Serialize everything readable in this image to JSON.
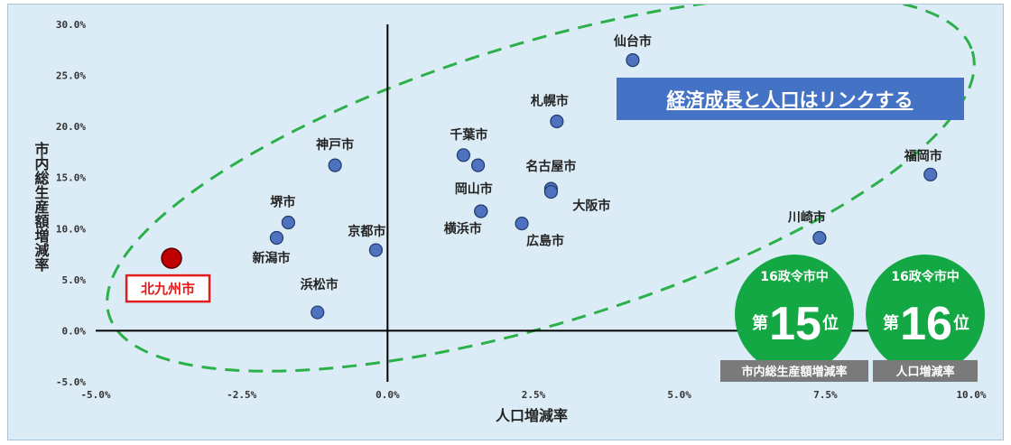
{
  "chart_data": {
    "type": "scatter",
    "xlabel": "人口増減率",
    "ylabel": "市内総生産額増減率",
    "xlim": [
      -5.0,
      10.0
    ],
    "ylim": [
      -5.0,
      30.0
    ],
    "x_ticks": [
      "-5.0%",
      "-2.5%",
      "0.0%",
      "2.5%",
      "5.0%",
      "7.5%",
      "10.0%"
    ],
    "y_ticks": [
      "-5.0%",
      "0.0%",
      "5.0%",
      "10.0%",
      "15.0%",
      "20.0%",
      "25.0%",
      "30.0%"
    ],
    "x_tick_values": [
      -5.0,
      -2.5,
      0.0,
      2.5,
      5.0,
      7.5,
      10.0
    ],
    "y_tick_values": [
      -5.0,
      0.0,
      5.0,
      10.0,
      15.0,
      20.0,
      25.0,
      30.0
    ],
    "points": [
      {
        "label": "仙台市",
        "x": 4.2,
        "y": 26.5
      },
      {
        "label": "札幌市",
        "x": 2.9,
        "y": 20.5
      },
      {
        "label": "福岡市",
        "x": 9.3,
        "y": 15.3
      },
      {
        "label": "神戸市",
        "x": -0.9,
        "y": 16.2
      },
      {
        "label": "千葉市",
        "x": 1.3,
        "y": 17.2
      },
      {
        "label": "",
        "x": 1.55,
        "y": 16.2
      },
      {
        "label": "名古屋市",
        "x": 2.8,
        "y": 13.9
      },
      {
        "label": "大阪市",
        "x": 2.8,
        "y": 13.6
      },
      {
        "label": "岡山市",
        "x": 1.6,
        "y": 11.7
      },
      {
        "label": "横浜市",
        "x": 1.6,
        "y": 11.7
      },
      {
        "label": "広島市",
        "x": 2.3,
        "y": 10.5
      },
      {
        "label": "堺市",
        "x": -1.7,
        "y": 10.6
      },
      {
        "label": "新潟市",
        "x": -1.9,
        "y": 9.1
      },
      {
        "label": "京都市",
        "x": -0.2,
        "y": 7.9
      },
      {
        "label": "浜松市",
        "x": -1.2,
        "y": 1.8
      },
      {
        "label": "川崎市",
        "x": 7.4,
        "y": 9.1
      },
      {
        "label": "北九州市",
        "x": -3.7,
        "y": 7.1,
        "highlight": true
      }
    ],
    "colors": {
      "point": "#4f72be",
      "highlight": "#c00000",
      "ellipse": "#2bb04a",
      "badge": "#14a845",
      "banner": "#4472c4"
    }
  },
  "banner": {
    "text": "経済成長と人口はリンクする"
  },
  "badges": [
    {
      "top": "16政令市中",
      "prefix": "第",
      "rank": "15",
      "suffix": "位",
      "caption": "市内総生産額増減率"
    },
    {
      "top": "16政令市中",
      "prefix": "第",
      "rank": "16",
      "suffix": "位",
      "caption": "人口増減率"
    }
  ]
}
